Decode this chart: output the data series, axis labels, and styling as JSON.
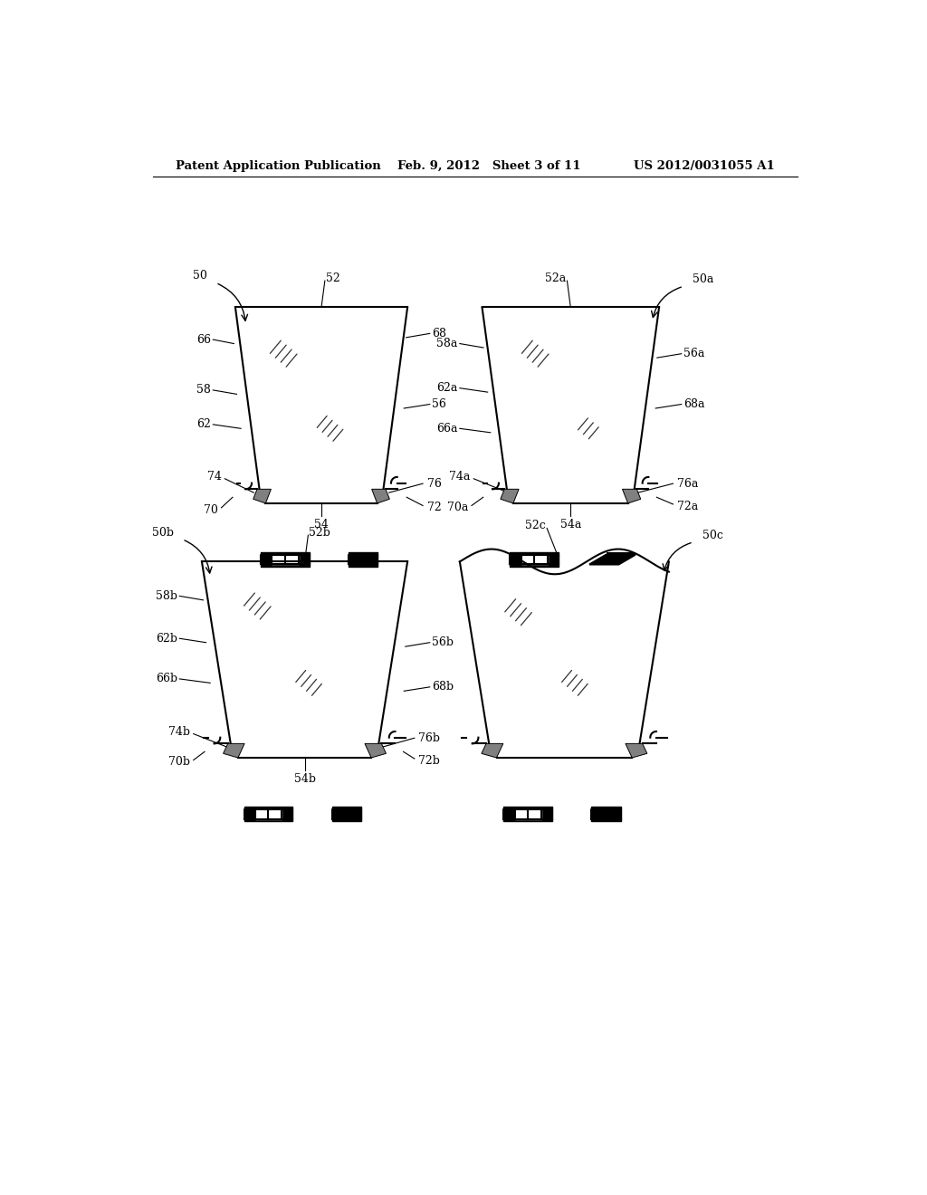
{
  "bg_color": "#ffffff",
  "header_left": "Patent Application Publication",
  "header_mid": "Feb. 9, 2012   Sheet 3 of 11",
  "header_right": "US 2012/0031055 A1",
  "fig_width": 10.24,
  "fig_height": 13.2
}
